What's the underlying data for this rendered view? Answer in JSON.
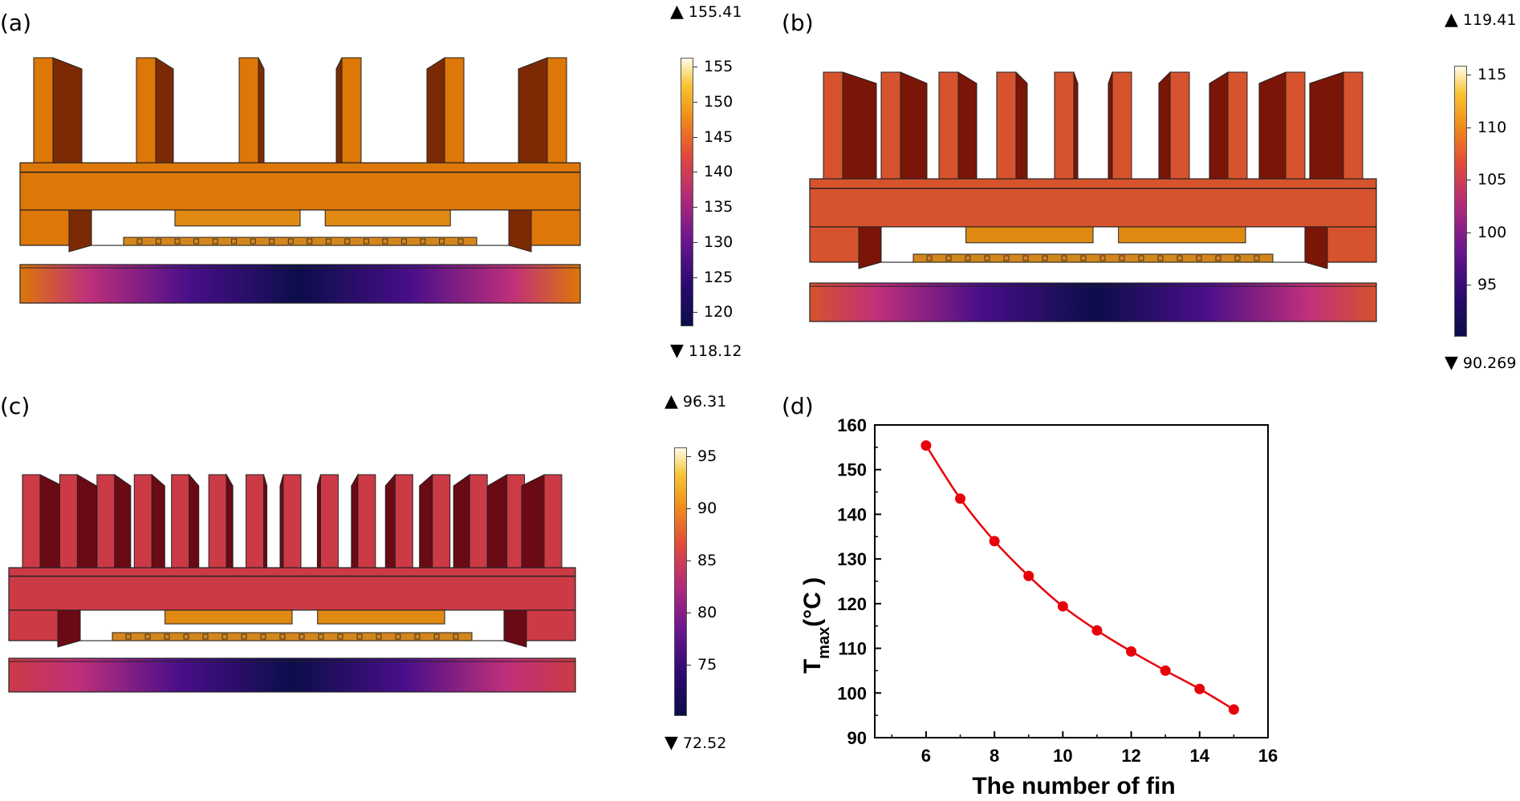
{
  "panels": {
    "a": {
      "label": "(a)",
      "max": "155.41",
      "min": "118.12",
      "ticks": [
        "155",
        "150",
        "145",
        "140",
        "135",
        "130",
        "125",
        "120"
      ],
      "fin_count": 6,
      "body_color": "#dd7708",
      "shade_color": "#7c2a04"
    },
    "b": {
      "label": "(b)",
      "max": "119.41",
      "min": "90.269",
      "ticks": [
        "115",
        "110",
        "105",
        "100",
        "95"
      ],
      "fin_count": 10,
      "body_color": "#d6532d",
      "shade_color": "#7a1508"
    },
    "c": {
      "label": "(c)",
      "max": "96.31",
      "min": "72.52",
      "ticks": [
        "95",
        "90",
        "85",
        "80",
        "75"
      ],
      "fin_count": 15,
      "body_color": "#cc3a45",
      "shade_color": "#6a0a15"
    },
    "d": {
      "label": "(d)"
    }
  },
  "chart_data": {
    "type": "line",
    "title": "",
    "xlabel": "The number of fin",
    "ylabel_main": "T",
    "ylabel_sub": "max",
    "ylabel_unit": "(°C )",
    "x": [
      6,
      7,
      8,
      9,
      10,
      11,
      12,
      13,
      14,
      15
    ],
    "y": [
      155.4,
      143.5,
      134.0,
      126.2,
      119.4,
      114.0,
      109.3,
      105.0,
      100.9,
      96.3
    ],
    "xlim": [
      4.5,
      16
    ],
    "ylim": [
      90,
      160
    ],
    "xticks": [
      "6",
      "8",
      "10",
      "12",
      "14",
      "16"
    ],
    "yticks": [
      "90",
      "100",
      "110",
      "120",
      "130",
      "140",
      "150",
      "160"
    ],
    "color": "#e8000a",
    "grid": false
  }
}
